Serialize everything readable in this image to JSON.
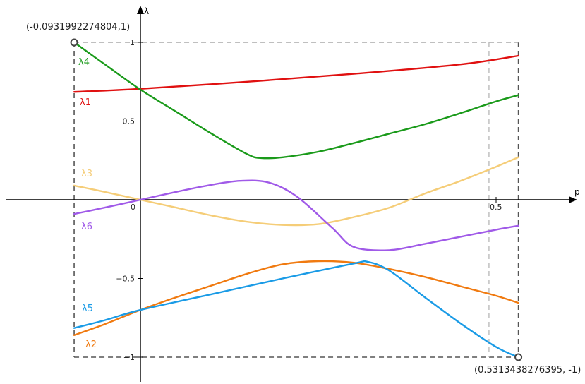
{
  "chart_data": {
    "type": "line",
    "xlabel": "p",
    "ylabel": "λ",
    "xlim": [
      -0.21,
      0.7
    ],
    "ylim": [
      -1.15,
      1.2
    ],
    "grid": false,
    "x_tick_labels": [
      "0",
      "0.5"
    ],
    "x_ticks": [
      0,
      0.5
    ],
    "y_tick_labels": [
      "1",
      "0.5",
      "−0.5",
      "−1"
    ],
    "y_ticks": [
      1,
      0.5,
      -0.5,
      -1
    ],
    "range_box": {
      "x_min": -0.0931992274804,
      "x_max": 0.5313438276395,
      "y_min": -1,
      "y_max": 1,
      "corner_labels": [
        "(-0.0931992274804,1)",
        "(0.5313438276395, -1)"
      ]
    },
    "vertical_guide_x": 0.49,
    "series": [
      {
        "name": "λ1",
        "color": "#e01010",
        "x": [
          -0.0932,
          0.0,
          0.15,
          0.3,
          0.45,
          0.5313
        ],
        "y": [
          0.685,
          0.705,
          0.75,
          0.8,
          0.86,
          0.915
        ]
      },
      {
        "name": "λ2",
        "color": "#f07a10",
        "x": [
          -0.0932,
          -0.05,
          0.0,
          0.05,
          0.1,
          0.15,
          0.2,
          0.25,
          0.3,
          0.35,
          0.4,
          0.45,
          0.5,
          0.5313
        ],
        "y": [
          -0.86,
          -0.79,
          -0.7,
          -0.62,
          -0.545,
          -0.47,
          -0.41,
          -0.39,
          -0.4,
          -0.44,
          -0.49,
          -0.55,
          -0.61,
          -0.655
        ]
      },
      {
        "name": "λ3",
        "color": "#f5cd78",
        "x": [
          -0.0932,
          -0.05,
          0.0,
          0.05,
          0.1,
          0.15,
          0.2,
          0.25,
          0.3,
          0.35,
          0.4,
          0.45,
          0.5,
          0.5313
        ],
        "y": [
          0.09,
          0.05,
          0.0,
          -0.05,
          -0.1,
          -0.14,
          -0.16,
          -0.155,
          -0.11,
          -0.05,
          0.04,
          0.12,
          0.21,
          0.27
        ]
      },
      {
        "name": "λ4",
        "color": "#1a9a1a",
        "x": [
          -0.0932,
          -0.05,
          0.0,
          0.05,
          0.1,
          0.15,
          0.17,
          0.2,
          0.25,
          0.3,
          0.35,
          0.4,
          0.45,
          0.5,
          0.5313
        ],
        "y": [
          1.0,
          0.86,
          0.7,
          0.56,
          0.42,
          0.29,
          0.265,
          0.27,
          0.305,
          0.36,
          0.42,
          0.48,
          0.55,
          0.625,
          0.665
        ]
      },
      {
        "name": "λ5",
        "color": "#1a9be6",
        "x": [
          -0.0932,
          -0.05,
          0.0,
          0.1,
          0.2,
          0.3,
          0.32,
          0.35,
          0.4,
          0.45,
          0.5,
          0.5313
        ],
        "y": [
          -0.815,
          -0.765,
          -0.7,
          -0.6,
          -0.5,
          -0.405,
          -0.395,
          -0.45,
          -0.62,
          -0.785,
          -0.935,
          -1.0
        ]
      },
      {
        "name": "λ6",
        "color": "#a05ae8",
        "x": [
          -0.0932,
          -0.05,
          0.0,
          0.05,
          0.1,
          0.14,
          0.18,
          0.22,
          0.27,
          0.3,
          0.35,
          0.4,
          0.45,
          0.5,
          0.5313
        ],
        "y": [
          -0.09,
          -0.05,
          0.0,
          0.05,
          0.095,
          0.12,
          0.11,
          0.02,
          -0.18,
          -0.3,
          -0.32,
          -0.28,
          -0.235,
          -0.19,
          -0.165
        ]
      }
    ]
  }
}
